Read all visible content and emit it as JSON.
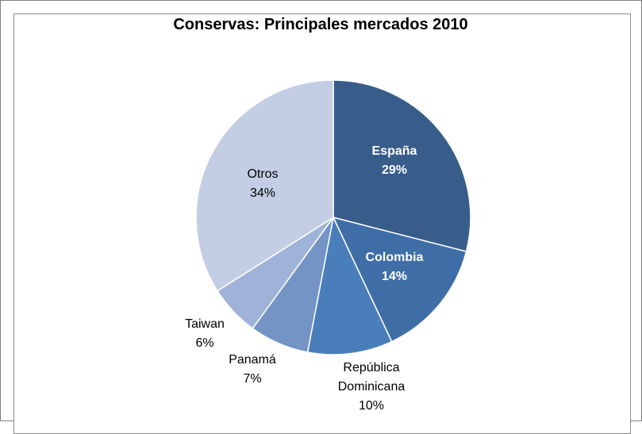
{
  "chart_data": {
    "type": "pie",
    "title": "Conservas: Principales mercados 2010",
    "slices": [
      {
        "label": "España",
        "value": 29,
        "pct_label": "29%",
        "color": "#385d8a",
        "label_color": "#ffffff",
        "bold": true
      },
      {
        "label": "Colombia",
        "value": 14,
        "pct_label": "14%",
        "color": "#3f6ea7",
        "label_color": "#ffffff",
        "bold": true
      },
      {
        "label": "República Dominicana",
        "value": 10,
        "pct_label": "10%",
        "color": "#4a7ebb",
        "label_color": "#000000",
        "bold": false
      },
      {
        "label": "Panamá",
        "value": 7,
        "pct_label": "7%",
        "color": "#7594c6",
        "label_color": "#000000",
        "bold": false
      },
      {
        "label": "Taiwan",
        "value": 6,
        "pct_label": "6%",
        "color": "#9fb3d8",
        "label_color": "#000000",
        "bold": false
      },
      {
        "label": "Otros",
        "value": 34,
        "pct_label": "34%",
        "color": "#c3cde3",
        "label_color": "#000000",
        "bold": false
      }
    ]
  }
}
